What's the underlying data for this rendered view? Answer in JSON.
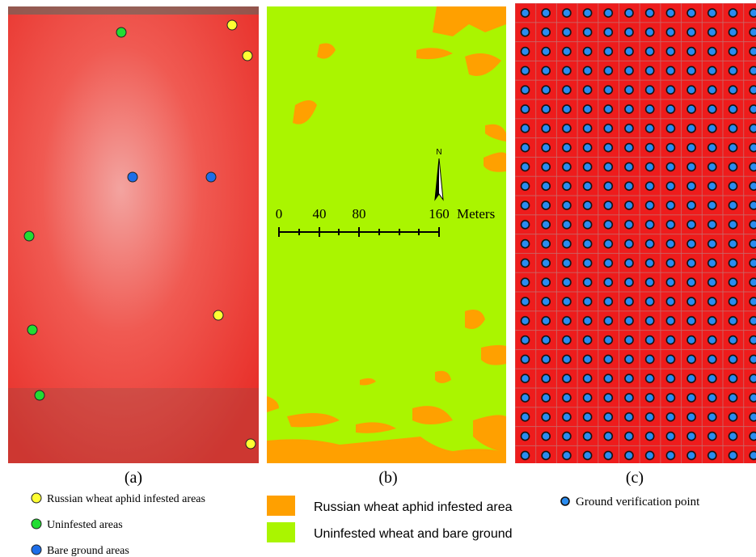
{
  "panels": [
    {
      "label": "(a)"
    },
    {
      "label": "(b)"
    },
    {
      "label": "(c)"
    }
  ],
  "legend_a": [
    "Russian wheat aphid infested areas",
    "Uninfested areas",
    "Bare ground areas"
  ],
  "legend_b": [
    "Russian wheat aphid infested area",
    "Uninfested wheat and bare ground"
  ],
  "legend_c": [
    "Ground verification point"
  ],
  "scale_bar": {
    "labels": [
      "0",
      "40",
      "80",
      "160"
    ],
    "unit": "Meters"
  },
  "north": "N"
}
